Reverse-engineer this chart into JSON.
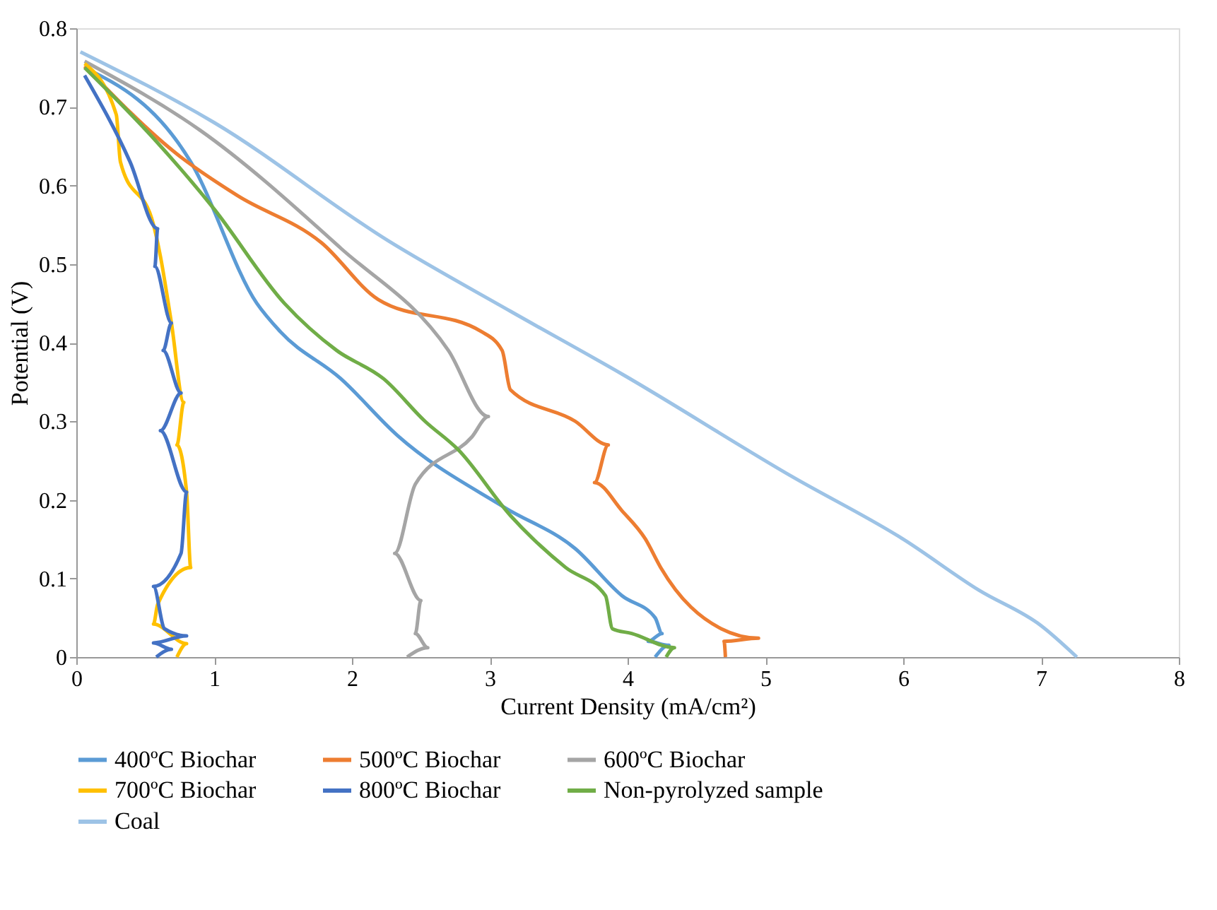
{
  "chart_data": {
    "type": "line",
    "xlabel": "Current Density (mA/cm²)",
    "ylabel": "Potential (V)",
    "xlim": [
      0,
      8
    ],
    "ylim": [
      0,
      0.8
    ],
    "xticks": [
      0,
      1,
      2,
      3,
      4,
      5,
      6,
      7,
      8
    ],
    "yticks": [
      0,
      0.1,
      0.2,
      0.3,
      0.4,
      0.5,
      0.6,
      0.7,
      0.8
    ],
    "grid": false,
    "legend": "bottom",
    "marker": "none",
    "line_style": "solid",
    "series": [
      {
        "name": "400ºC Biochar",
        "color": "#5b9bd5",
        "x": [
          0.06,
          0.83,
          1.31,
          1.48,
          1.92,
          2.33,
          3.11,
          3.62,
          3.96,
          4.2,
          4.25,
          4.15,
          4.3,
          4.2
        ],
        "values": [
          0.75,
          0.63,
          0.45,
          0.414,
          0.354,
          0.282,
          0.19,
          0.138,
          0.078,
          0.05,
          0.03,
          0.02,
          0.015,
          0.0
        ]
      },
      {
        "name": "500ºC Biochar",
        "color": "#ed7d31",
        "x": [
          0.06,
          0.73,
          1.17,
          1.78,
          2.19,
          2.94,
          3.09,
          3.15,
          3.62,
          3.86,
          3.76,
          3.96,
          4.13,
          4.24,
          4.68,
          4.95,
          4.7,
          4.71
        ],
        "values": [
          0.752,
          0.64,
          0.587,
          0.527,
          0.455,
          0.414,
          0.39,
          0.34,
          0.3,
          0.27,
          0.222,
          0.186,
          0.15,
          0.114,
          0.036,
          0.024,
          0.02,
          0.0
        ]
      },
      {
        "name": "600ºC Biochar",
        "color": "#a5a5a5",
        "x": [
          0.06,
          0.9,
          1.92,
          2.7,
          2.99,
          2.87,
          2.46,
          2.31,
          2.5,
          2.46,
          2.55,
          2.4
        ],
        "values": [
          0.758,
          0.67,
          0.52,
          0.39,
          0.306,
          0.28,
          0.22,
          0.132,
          0.072,
          0.03,
          0.012,
          0.0
        ]
      },
      {
        "name": "700ºC Biochar",
        "color": "#ffc000",
        "x": [
          0.06,
          0.29,
          0.32,
          0.56,
          0.61,
          0.69,
          0.78,
          0.73,
          0.8,
          0.83,
          0.59,
          0.56,
          0.8,
          0.73
        ],
        "values": [
          0.755,
          0.69,
          0.63,
          0.55,
          0.51,
          0.425,
          0.324,
          0.27,
          0.21,
          0.114,
          0.067,
          0.042,
          0.017,
          0.0
        ]
      },
      {
        "name": "800ºC Biochar",
        "color": "#4472c4",
        "x": [
          0.06,
          0.39,
          0.59,
          0.57,
          0.69,
          0.63,
          0.76,
          0.61,
          0.8,
          0.76,
          0.56,
          0.64,
          0.8,
          0.56,
          0.69,
          0.58
        ],
        "values": [
          0.74,
          0.63,
          0.545,
          0.497,
          0.425,
          0.39,
          0.336,
          0.288,
          0.21,
          0.132,
          0.09,
          0.036,
          0.027,
          0.018,
          0.01,
          0.0
        ]
      },
      {
        "name": "Non-pyrolyzed sample",
        "color": "#70ad47",
        "x": [
          0.06,
          0.56,
          1.0,
          1.51,
          1.89,
          2.23,
          2.53,
          2.77,
          3.15,
          3.55,
          3.84,
          3.89,
          4.03,
          4.34,
          4.28
        ],
        "values": [
          0.75,
          0.66,
          0.57,
          0.45,
          0.39,
          0.354,
          0.3,
          0.264,
          0.18,
          0.114,
          0.078,
          0.036,
          0.03,
          0.012,
          0.0
        ]
      },
      {
        "name": "Coal",
        "color": "#9dc3e6",
        "x": [
          0.03,
          1.0,
          2.26,
          3.15,
          3.96,
          5.19,
          6.0,
          6.55,
          7.0,
          7.26
        ],
        "values": [
          0.77,
          0.68,
          0.53,
          0.44,
          0.36,
          0.23,
          0.15,
          0.085,
          0.04,
          0.0
        ]
      }
    ]
  }
}
